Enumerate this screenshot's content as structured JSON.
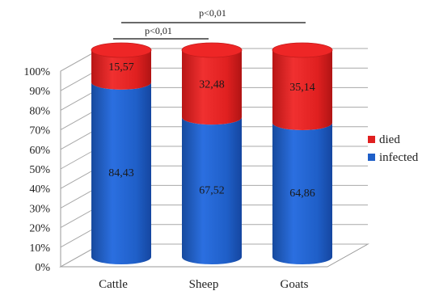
{
  "chart_data": {
    "type": "bar",
    "stacked": true,
    "three_d": true,
    "categories": [
      "Cattle",
      "Sheep",
      "Goats"
    ],
    "series": [
      {
        "name": "infected",
        "values": [
          84.43,
          67.52,
          64.86
        ],
        "labels": [
          "84,43",
          "67,52",
          "64,86"
        ],
        "color": "#1f5fc8"
      },
      {
        "name": "died",
        "values": [
          15.57,
          32.48,
          35.14
        ],
        "labels": [
          "15,57",
          "32,48",
          "35,14"
        ],
        "color": "#e02020"
      }
    ],
    "y_ticks": [
      "0%",
      "10%",
      "20%",
      "30%",
      "40%",
      "50%",
      "60%",
      "70%",
      "80%",
      "90%",
      "100%"
    ],
    "ylim": [
      0,
      100
    ],
    "legend_position": "right",
    "legend_order": [
      "died",
      "infected"
    ],
    "annotations": [
      {
        "text": "p<0,01",
        "from": "Cattle",
        "to": "Sheep"
      },
      {
        "text": "p<0,01",
        "from": "Cattle",
        "to": "Goats"
      }
    ],
    "grid": true
  }
}
